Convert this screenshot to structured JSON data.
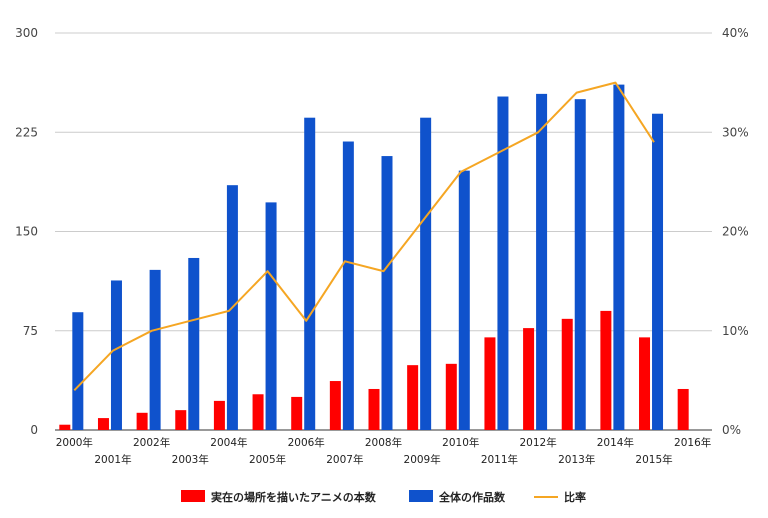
{
  "chart_data": {
    "type": "bar",
    "categories": [
      "2000年",
      "2001年",
      "2002年",
      "2003年",
      "2004年",
      "2005年",
      "2006年",
      "2007年",
      "2008年",
      "2009年",
      "2010年",
      "2011年",
      "2012年",
      "2013年",
      "2014年",
      "2015年",
      "2016年"
    ],
    "ylim_left": [
      0,
      300
    ],
    "ylim_right": [
      0,
      40
    ],
    "yticks_left": [
      "0",
      "75",
      "150",
      "225",
      "300"
    ],
    "yticks_right": [
      "0%",
      "10%",
      "20%",
      "30%",
      "40%"
    ],
    "grid": true,
    "legend_position": "bottom",
    "series": [
      {
        "name": "実在の場所を描いたアニメの本数",
        "type": "bar",
        "axis": "left",
        "color": "#ff0000",
        "values": [
          4,
          9,
          13,
          15,
          22,
          27,
          25,
          37,
          31,
          49,
          50,
          70,
          77,
          84,
          90,
          70,
          31
        ]
      },
      {
        "name": "全体の作品数",
        "type": "bar",
        "axis": "left",
        "color": "#0f52cc",
        "values": [
          89,
          113,
          121,
          130,
          185,
          172,
          236,
          218,
          207,
          236,
          196,
          252,
          254,
          250,
          261,
          239,
          null
        ]
      },
      {
        "name": "比率",
        "type": "line",
        "axis": "right",
        "color": "#f5a623",
        "values": [
          4,
          8,
          10,
          11,
          12,
          16,
          11,
          17,
          16,
          21,
          26,
          28,
          30,
          34,
          35,
          29,
          null
        ]
      }
    ]
  }
}
